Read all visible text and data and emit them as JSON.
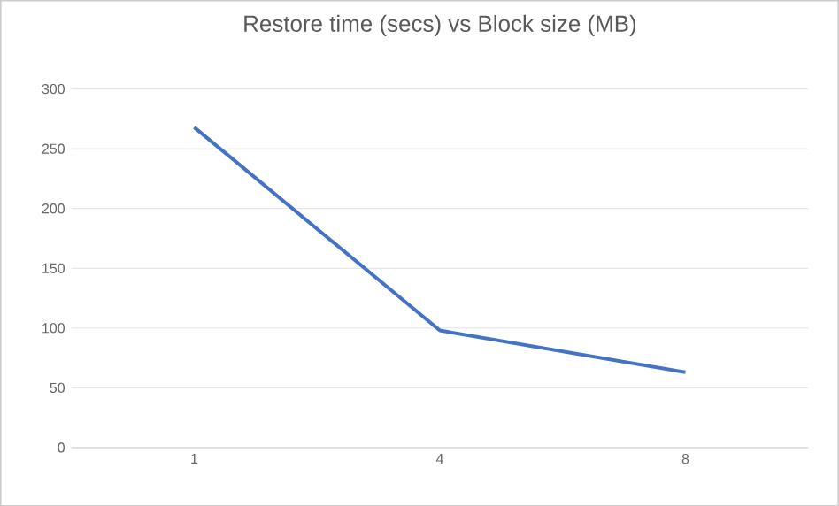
{
  "chart_data": {
    "type": "line",
    "title": "Restore time (secs) vs Block size (MB)",
    "categories": [
      "1",
      "4",
      "8"
    ],
    "values": [
      268,
      98,
      63
    ],
    "color": "#4472c4",
    "ylim": [
      0,
      300
    ],
    "yticks": [
      0,
      50,
      100,
      150,
      200,
      250,
      300
    ],
    "grid": "y",
    "marker": "none",
    "line_style": "solid"
  }
}
